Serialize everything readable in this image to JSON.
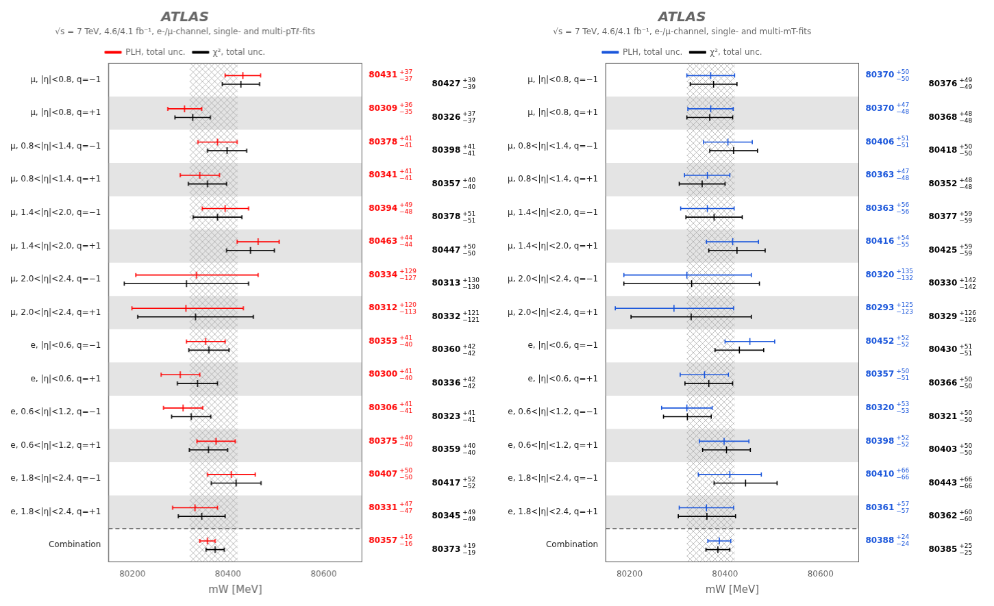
{
  "chart_data": [
    {
      "type": "errorbar",
      "title": "ATLAS",
      "subtitle": "√s = 7 TeV, 4.6/4.1 fb⁻¹, e-/μ-channel, single- and multi-pTℓ-fits",
      "xlabel": "mW [MeV]",
      "xlim": [
        80150,
        80680
      ],
      "xticks": [
        80200,
        80400,
        80600
      ],
      "grid": false,
      "legend": "top",
      "orientation": "horizontal",
      "data_labels": true,
      "band": [
        80320,
        80420
      ],
      "categories": [
        "μ, |η|<0.8, q=−1",
        "μ, |η|<0.8, q=+1",
        "μ, 0.8<|η|<1.4, q=−1",
        "μ, 0.8<|η|<1.4, q=+1",
        "μ, 1.4<|η|<2.0, q=−1",
        "μ, 1.4<|η|<2.0, q=+1",
        "μ, 2.0<|η|<2.4, q=−1",
        "μ, 2.0<|η|<2.4, q=+1",
        "e, |η|<0.6, q=−1",
        "e, |η|<0.6, q=+1",
        "e, 0.6<|η|<1.2, q=−1",
        "e, 0.6<|η|<1.2, q=+1",
        "e, 1.8<|η|<2.4, q=−1",
        "e, 1.8<|η|<2.4, q=+1",
        "Combination"
      ],
      "series": [
        {
          "name": "PLH, total unc.",
          "color": "red",
          "values": [
            80431,
            80309,
            80378,
            80341,
            80394,
            80463,
            80334,
            80312,
            80353,
            80300,
            80306,
            80375,
            80407,
            80331,
            80357
          ],
          "err_plus": [
            37,
            36,
            41,
            41,
            49,
            44,
            129,
            120,
            41,
            41,
            41,
            40,
            50,
            47,
            16
          ],
          "err_minus": [
            37,
            35,
            41,
            41,
            48,
            44,
            127,
            113,
            40,
            40,
            41,
            40,
            50,
            47,
            16
          ],
          "err_plus_labels": [
            "+37",
            "+36",
            "+41",
            "+41",
            "+49",
            "+44",
            "+129",
            "+120",
            "+41",
            "+41",
            "+41",
            "+40",
            "+50",
            "+47",
            "+16"
          ],
          "err_minus_labels": [
            "−37",
            "−35",
            "−41",
            "−41",
            "−48",
            "−44",
            "−127",
            "−113",
            "−40",
            "−40",
            "−41",
            "−40",
            "−50",
            "−47",
            "−16"
          ]
        },
        {
          "name": "χ², total unc.",
          "color": "black",
          "values": [
            80427,
            80326,
            80398,
            80357,
            80378,
            80447,
            80313,
            80332,
            80360,
            80336,
            80323,
            80359,
            80417,
            80345,
            80373
          ],
          "err_plus": [
            39,
            37,
            41,
            40,
            51,
            50,
            130,
            121,
            42,
            42,
            41,
            40,
            52,
            49,
            19
          ],
          "err_minus": [
            39,
            37,
            41,
            40,
            51,
            50,
            130,
            121,
            42,
            42,
            41,
            40,
            52,
            49,
            19
          ],
          "err_plus_labels": [
            "+39",
            "+37",
            "+41",
            "+40",
            "+51",
            "+50",
            "+130",
            "+121",
            "+42",
            "+42",
            "+41",
            "+40",
            "+52",
            "+49",
            "+19"
          ],
          "err_minus_labels": [
            "−39",
            "−37",
            "−41",
            "−40",
            "−51",
            "−50",
            "−130",
            "−121",
            "−42",
            "−42",
            "−41",
            "−40",
            "−52",
            "−49",
            "−19"
          ]
        }
      ]
    },
    {
      "type": "errorbar",
      "title": "ATLAS",
      "subtitle": "√s = 7 TeV, 4.6/4.1 fb⁻¹, e-/μ-channel, single- and multi-mT-fits",
      "xlabel": "mW [MeV]",
      "xlim": [
        80150,
        80680
      ],
      "xticks": [
        80200,
        80400,
        80600
      ],
      "grid": false,
      "legend": "top",
      "orientation": "horizontal",
      "data_labels": true,
      "band": [
        80320,
        80420
      ],
      "categories": [
        "μ, |η|<0.8, q=−1",
        "μ, |η|<0.8, q=+1",
        "μ, 0.8<|η|<1.4, q=−1",
        "μ, 0.8<|η|<1.4, q=+1",
        "μ, 1.4<|η|<2.0, q=−1",
        "μ, 1.4<|η|<2.0, q=+1",
        "μ, 2.0<|η|<2.4, q=−1",
        "μ, 2.0<|η|<2.4, q=+1",
        "e, |η|<0.6, q=−1",
        "e, |η|<0.6, q=+1",
        "e, 0.6<|η|<1.2, q=−1",
        "e, 0.6<|η|<1.2, q=+1",
        "e, 1.8<|η|<2.4, q=−1",
        "e, 1.8<|η|<2.4, q=+1",
        "Combination"
      ],
      "series": [
        {
          "name": "PLH, total unc.",
          "color": "#1a56db",
          "values": [
            80370,
            80370,
            80406,
            80363,
            80363,
            80416,
            80320,
            80293,
            80452,
            80357,
            80320,
            80398,
            80410,
            80361,
            80388
          ],
          "err_plus": [
            50,
            47,
            51,
            47,
            56,
            54,
            135,
            125,
            52,
            50,
            53,
            52,
            66,
            57,
            24
          ],
          "err_minus": [
            50,
            48,
            51,
            48,
            56,
            55,
            132,
            123,
            52,
            51,
            53,
            52,
            66,
            57,
            24
          ],
          "err_plus_labels": [
            "+50",
            "+47",
            "+51",
            "+47",
            "+56",
            "+54",
            "+135",
            "+125",
            "+52",
            "+50",
            "+53",
            "+52",
            "+66",
            "+57",
            "+24"
          ],
          "err_minus_labels": [
            "−50",
            "−48",
            "−51",
            "−48",
            "−56",
            "−55",
            "−132",
            "−123",
            "−52",
            "−51",
            "−53",
            "−52",
            "−66",
            "−57",
            "−24"
          ]
        },
        {
          "name": "χ², total unc.",
          "color": "black",
          "values": [
            80376,
            80368,
            80418,
            80352,
            80377,
            80425,
            80330,
            80329,
            80430,
            80366,
            80321,
            80403,
            80443,
            80362,
            80385
          ],
          "err_plus": [
            49,
            48,
            50,
            48,
            59,
            59,
            142,
            126,
            51,
            50,
            50,
            50,
            66,
            60,
            25
          ],
          "err_minus": [
            49,
            48,
            50,
            48,
            59,
            59,
            142,
            126,
            51,
            50,
            50,
            50,
            66,
            60,
            25
          ],
          "err_plus_labels": [
            "+49",
            "+48",
            "+50",
            "+48",
            "+59",
            "+59",
            "+142",
            "+126",
            "+51",
            "+50",
            "+50",
            "+50",
            "+66",
            "+60",
            "+25"
          ],
          "err_minus_labels": [
            "−49",
            "−48",
            "−50",
            "−48",
            "−59",
            "−59",
            "−142",
            "−126",
            "−51",
            "−50",
            "−50",
            "−50",
            "−66",
            "−60",
            "−25"
          ]
        }
      ]
    }
  ]
}
